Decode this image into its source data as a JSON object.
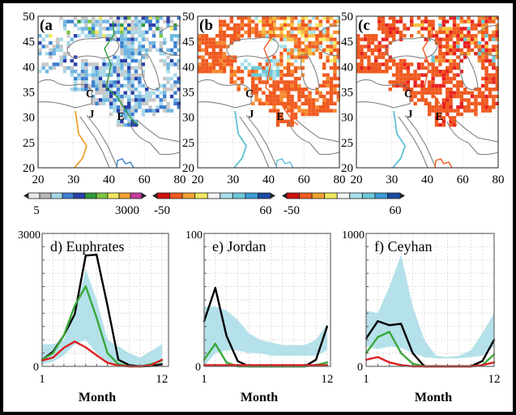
{
  "maps": [
    {
      "label": "(a",
      "palette": [
        "#c8c8c8",
        "#a8d8e8",
        "#6fb6e0",
        "#3d7fd0",
        "#2a3fa8",
        "#2e9a3a",
        "#7cc442",
        "#f2e860",
        "#f0a030"
      ],
      "river_color": "#f0a030",
      "river2_color": "#3d7fd0",
      "boundary_color": "#2e9a3a"
    },
    {
      "label": "(b",
      "palette": [
        "#f05a20",
        "#f05a20",
        "#f05a20",
        "#f58a30",
        "#f8c040",
        "#f6ec6a",
        "#a8e0e8",
        "#6cc8d8"
      ],
      "river_color": "#5ec0d6",
      "river2_color": "#5ec0d6",
      "boundary_color": "#f05a20"
    },
    {
      "label": "(c",
      "palette": [
        "#f05a20",
        "#f05a20",
        "#f05a20",
        "#e82020",
        "#f58a30",
        "#f8c040",
        "#f6ec6a",
        "#6cc8d8"
      ],
      "river_color": "#5ec0d6",
      "river2_color": "#f05a20",
      "boundary_color": "#f05a20"
    }
  ],
  "map_axes": {
    "y_ticks": [
      "50",
      "45",
      "40",
      "35",
      "30",
      "25",
      "20"
    ],
    "x_ticks": [
      "20",
      "30",
      "40",
      "60",
      "80"
    ],
    "site_labels": [
      "C",
      "J",
      "E"
    ]
  },
  "colorbars": [
    {
      "min_label": "5",
      "max_label": "3000",
      "colors": [
        "#e8e8e8",
        "#b8b8b8",
        "#a8d8e8",
        "#3d7fd0",
        "#2a3fa8",
        "#2e9a3a",
        "#7cc442",
        "#f2e860",
        "#f0a030",
        "#c03a9a"
      ]
    },
    {
      "min_label": "-50",
      "max_label": "60",
      "colors": [
        "#d01010",
        "#f05a20",
        "#f0a030",
        "#f2e860",
        "#f4f4f4",
        "#a8e0e8",
        "#6cc8d8",
        "#3d9ad8",
        "#1a4aa0"
      ]
    },
    {
      "min_label": "-50",
      "max_label": "60",
      "colors": [
        "#d01010",
        "#f05a20",
        "#f0a030",
        "#f2e860",
        "#f4f4f4",
        "#a8e0e8",
        "#6cc8d8",
        "#3d9ad8",
        "#1a4aa0"
      ]
    }
  ],
  "chart_data": [
    {
      "type": "line",
      "title": "d) Euphrates",
      "xlabel": "Month",
      "x_tick_labels": [
        "1",
        "12"
      ],
      "y_tick_labels": [
        "0",
        "3000"
      ],
      "xlim": [
        1,
        12.6
      ],
      "ylim": [
        0,
        3000
      ],
      "grid": true,
      "x": [
        1,
        2,
        3,
        4,
        5,
        6,
        7,
        8,
        9,
        10,
        11,
        12
      ],
      "band": {
        "color": "#a8dce6",
        "lower": [
          50,
          100,
          250,
          500,
          600,
          300,
          100,
          0,
          0,
          0,
          0,
          0
        ],
        "upper": [
          500,
          500,
          600,
          1200,
          2200,
          1500,
          600,
          450,
          300,
          200,
          350,
          500
        ]
      },
      "series": [
        {
          "color": "#000000",
          "values": [
            150,
            330,
            700,
            1180,
            2500,
            2520,
            1370,
            150,
            30,
            0,
            10,
            50
          ]
        },
        {
          "color": "#3aa83a",
          "values": [
            150,
            300,
            700,
            1370,
            1810,
            1100,
            300,
            50,
            0,
            0,
            50,
            130
          ]
        },
        {
          "color": "#e02020",
          "values": [
            130,
            200,
            420,
            560,
            430,
            250,
            80,
            20,
            0,
            0,
            30,
            150
          ]
        }
      ]
    },
    {
      "type": "line",
      "title": "e) Jordan",
      "xlabel": "Month",
      "x_tick_labels": [
        "1",
        "12"
      ],
      "y_tick_labels": [
        "0",
        "100"
      ],
      "xlim": [
        1,
        12.3
      ],
      "ylim": [
        0,
        100
      ],
      "grid": true,
      "x": [
        1,
        2,
        3,
        4,
        5,
        6,
        7,
        8,
        9,
        10,
        11,
        12
      ],
      "band": {
        "color": "#a8dce6",
        "lower": [
          0,
          10,
          12,
          12,
          10,
          10,
          8,
          8,
          8,
          8,
          8,
          12
        ],
        "upper": [
          45,
          45,
          42,
          35,
          25,
          20,
          18,
          16,
          16,
          16,
          20,
          32
        ]
      },
      "series": [
        {
          "color": "#000000",
          "values": [
            34,
            59,
            23,
            4,
            0,
            0,
            0,
            0,
            0,
            0,
            5,
            30
          ]
        },
        {
          "color": "#3aa83a",
          "values": [
            5,
            17,
            3,
            0,
            0,
            0,
            0,
            0,
            0,
            0,
            1,
            3
          ]
        },
        {
          "color": "#e02020",
          "values": [
            1,
            1,
            1,
            1,
            1,
            1,
            1,
            1,
            1,
            1,
            1,
            1
          ]
        }
      ]
    },
    {
      "type": "line",
      "title": "f) Ceyhan",
      "xlabel": "Month",
      "x_tick_labels": [
        "1",
        "12"
      ],
      "y_tick_labels": [
        "0",
        "1000"
      ],
      "xlim": [
        1,
        12
      ],
      "ylim": [
        0,
        1000
      ],
      "grid": true,
      "x": [
        1,
        2,
        3,
        4,
        5,
        6,
        7,
        8,
        9,
        10,
        11,
        12
      ],
      "band": {
        "color": "#a8dce6",
        "lower": [
          150,
          130,
          150,
          140,
          100,
          70,
          60,
          60,
          60,
          70,
          80,
          150
        ],
        "upper": [
          420,
          400,
          600,
          840,
          450,
          200,
          80,
          70,
          80,
          120,
          250,
          400
        ]
      },
      "series": [
        {
          "color": "#000000",
          "values": [
            210,
            340,
            310,
            320,
            100,
            0,
            0,
            0,
            0,
            0,
            40,
            200
          ]
        },
        {
          "color": "#3aa83a",
          "values": [
            100,
            220,
            260,
            100,
            20,
            0,
            0,
            0,
            0,
            0,
            10,
            90
          ]
        },
        {
          "color": "#e02020",
          "values": [
            50,
            70,
            30,
            10,
            0,
            0,
            0,
            0,
            0,
            0,
            10,
            30
          ]
        }
      ]
    }
  ]
}
